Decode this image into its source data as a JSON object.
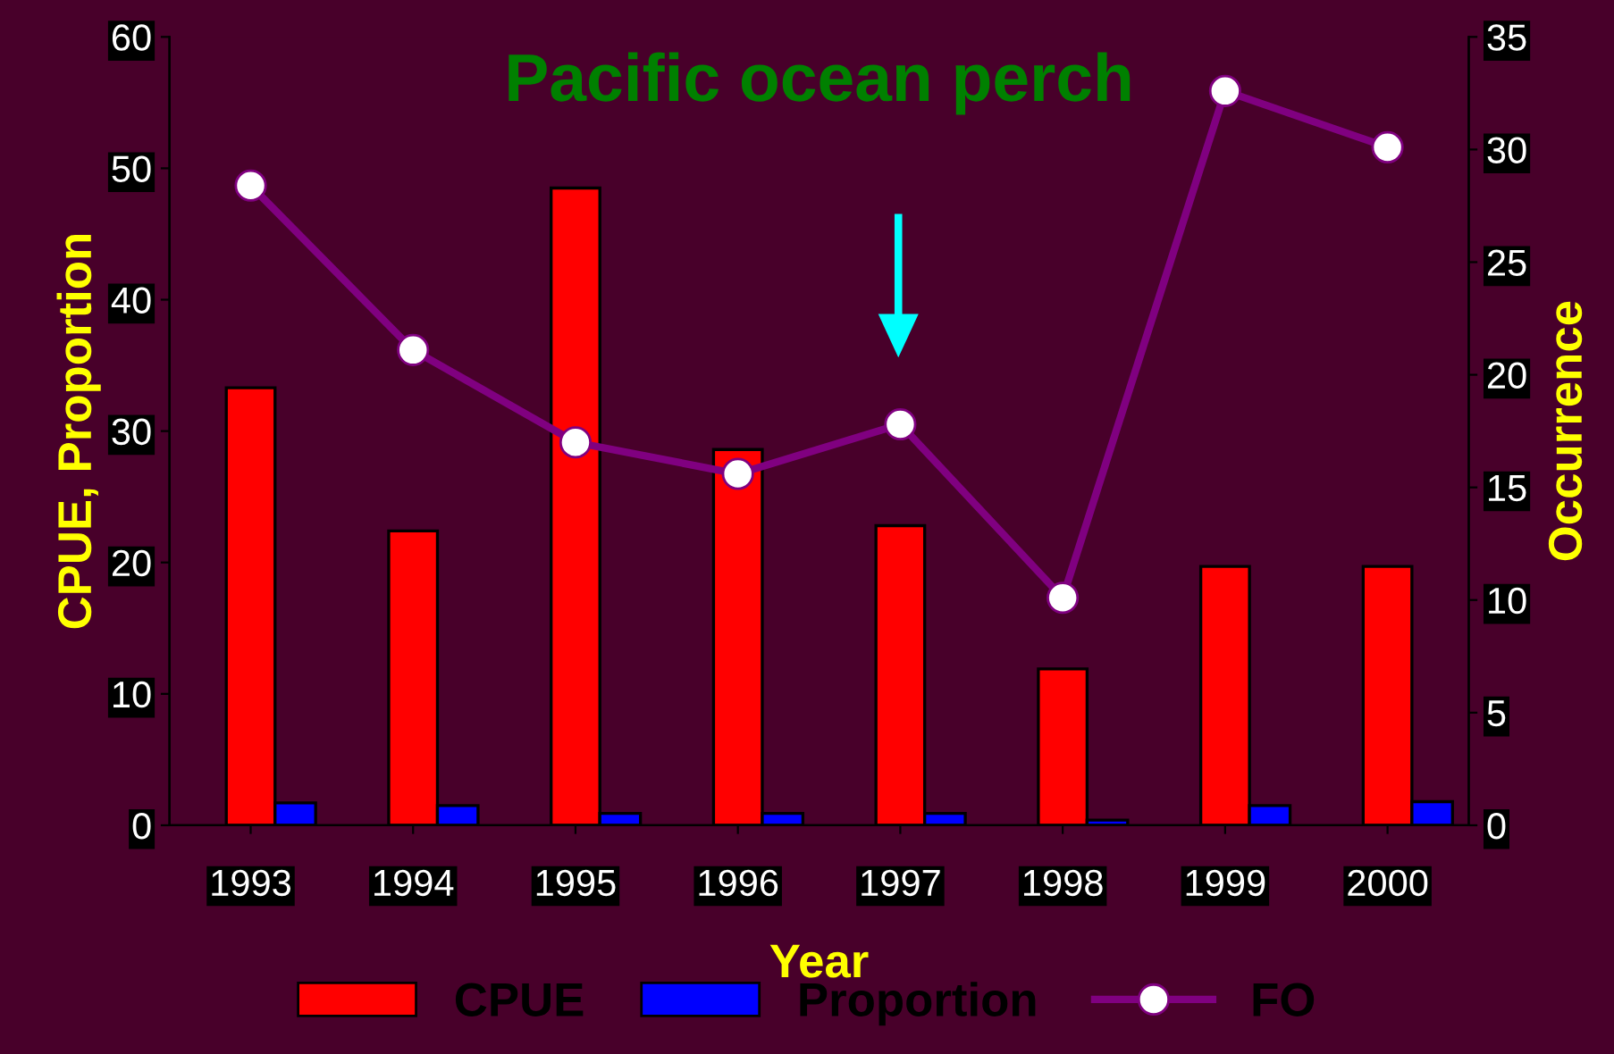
{
  "chart_data": {
    "type": "bar",
    "title": "Pacific ocean perch",
    "xlabel": "Year",
    "ylabel": "CPUE, Proportion",
    "y2label": "Occurrence",
    "categories": [
      "1993",
      "1994",
      "1995",
      "1996",
      "1997",
      "1998",
      "1999",
      "2000"
    ],
    "series": [
      {
        "name": "CPUE",
        "color": "#ff0000",
        "values": [
          33.3,
          22.4,
          48.5,
          28.6,
          22.8,
          11.9,
          19.7,
          19.7
        ]
      },
      {
        "name": "Proportion",
        "color": "#0000ff",
        "values": [
          1.7,
          1.5,
          0.9,
          0.9,
          0.9,
          0.4,
          1.5,
          1.8
        ]
      },
      {
        "name": "FO",
        "type": "line",
        "axis": "y2",
        "color": "#800080",
        "marker": "circle",
        "values": [
          28.4,
          21.1,
          17.0,
          15.6,
          17.8,
          10.1,
          32.6,
          30.1
        ]
      }
    ],
    "ylim": [
      0,
      60
    ],
    "yticks": [
      0,
      10,
      20,
      30,
      40,
      50,
      60
    ],
    "y2lim": [
      0,
      35
    ],
    "y2ticks": [
      0,
      5,
      10,
      15,
      20,
      25,
      30,
      35
    ],
    "grid": false,
    "legend": "bottom"
  }
}
